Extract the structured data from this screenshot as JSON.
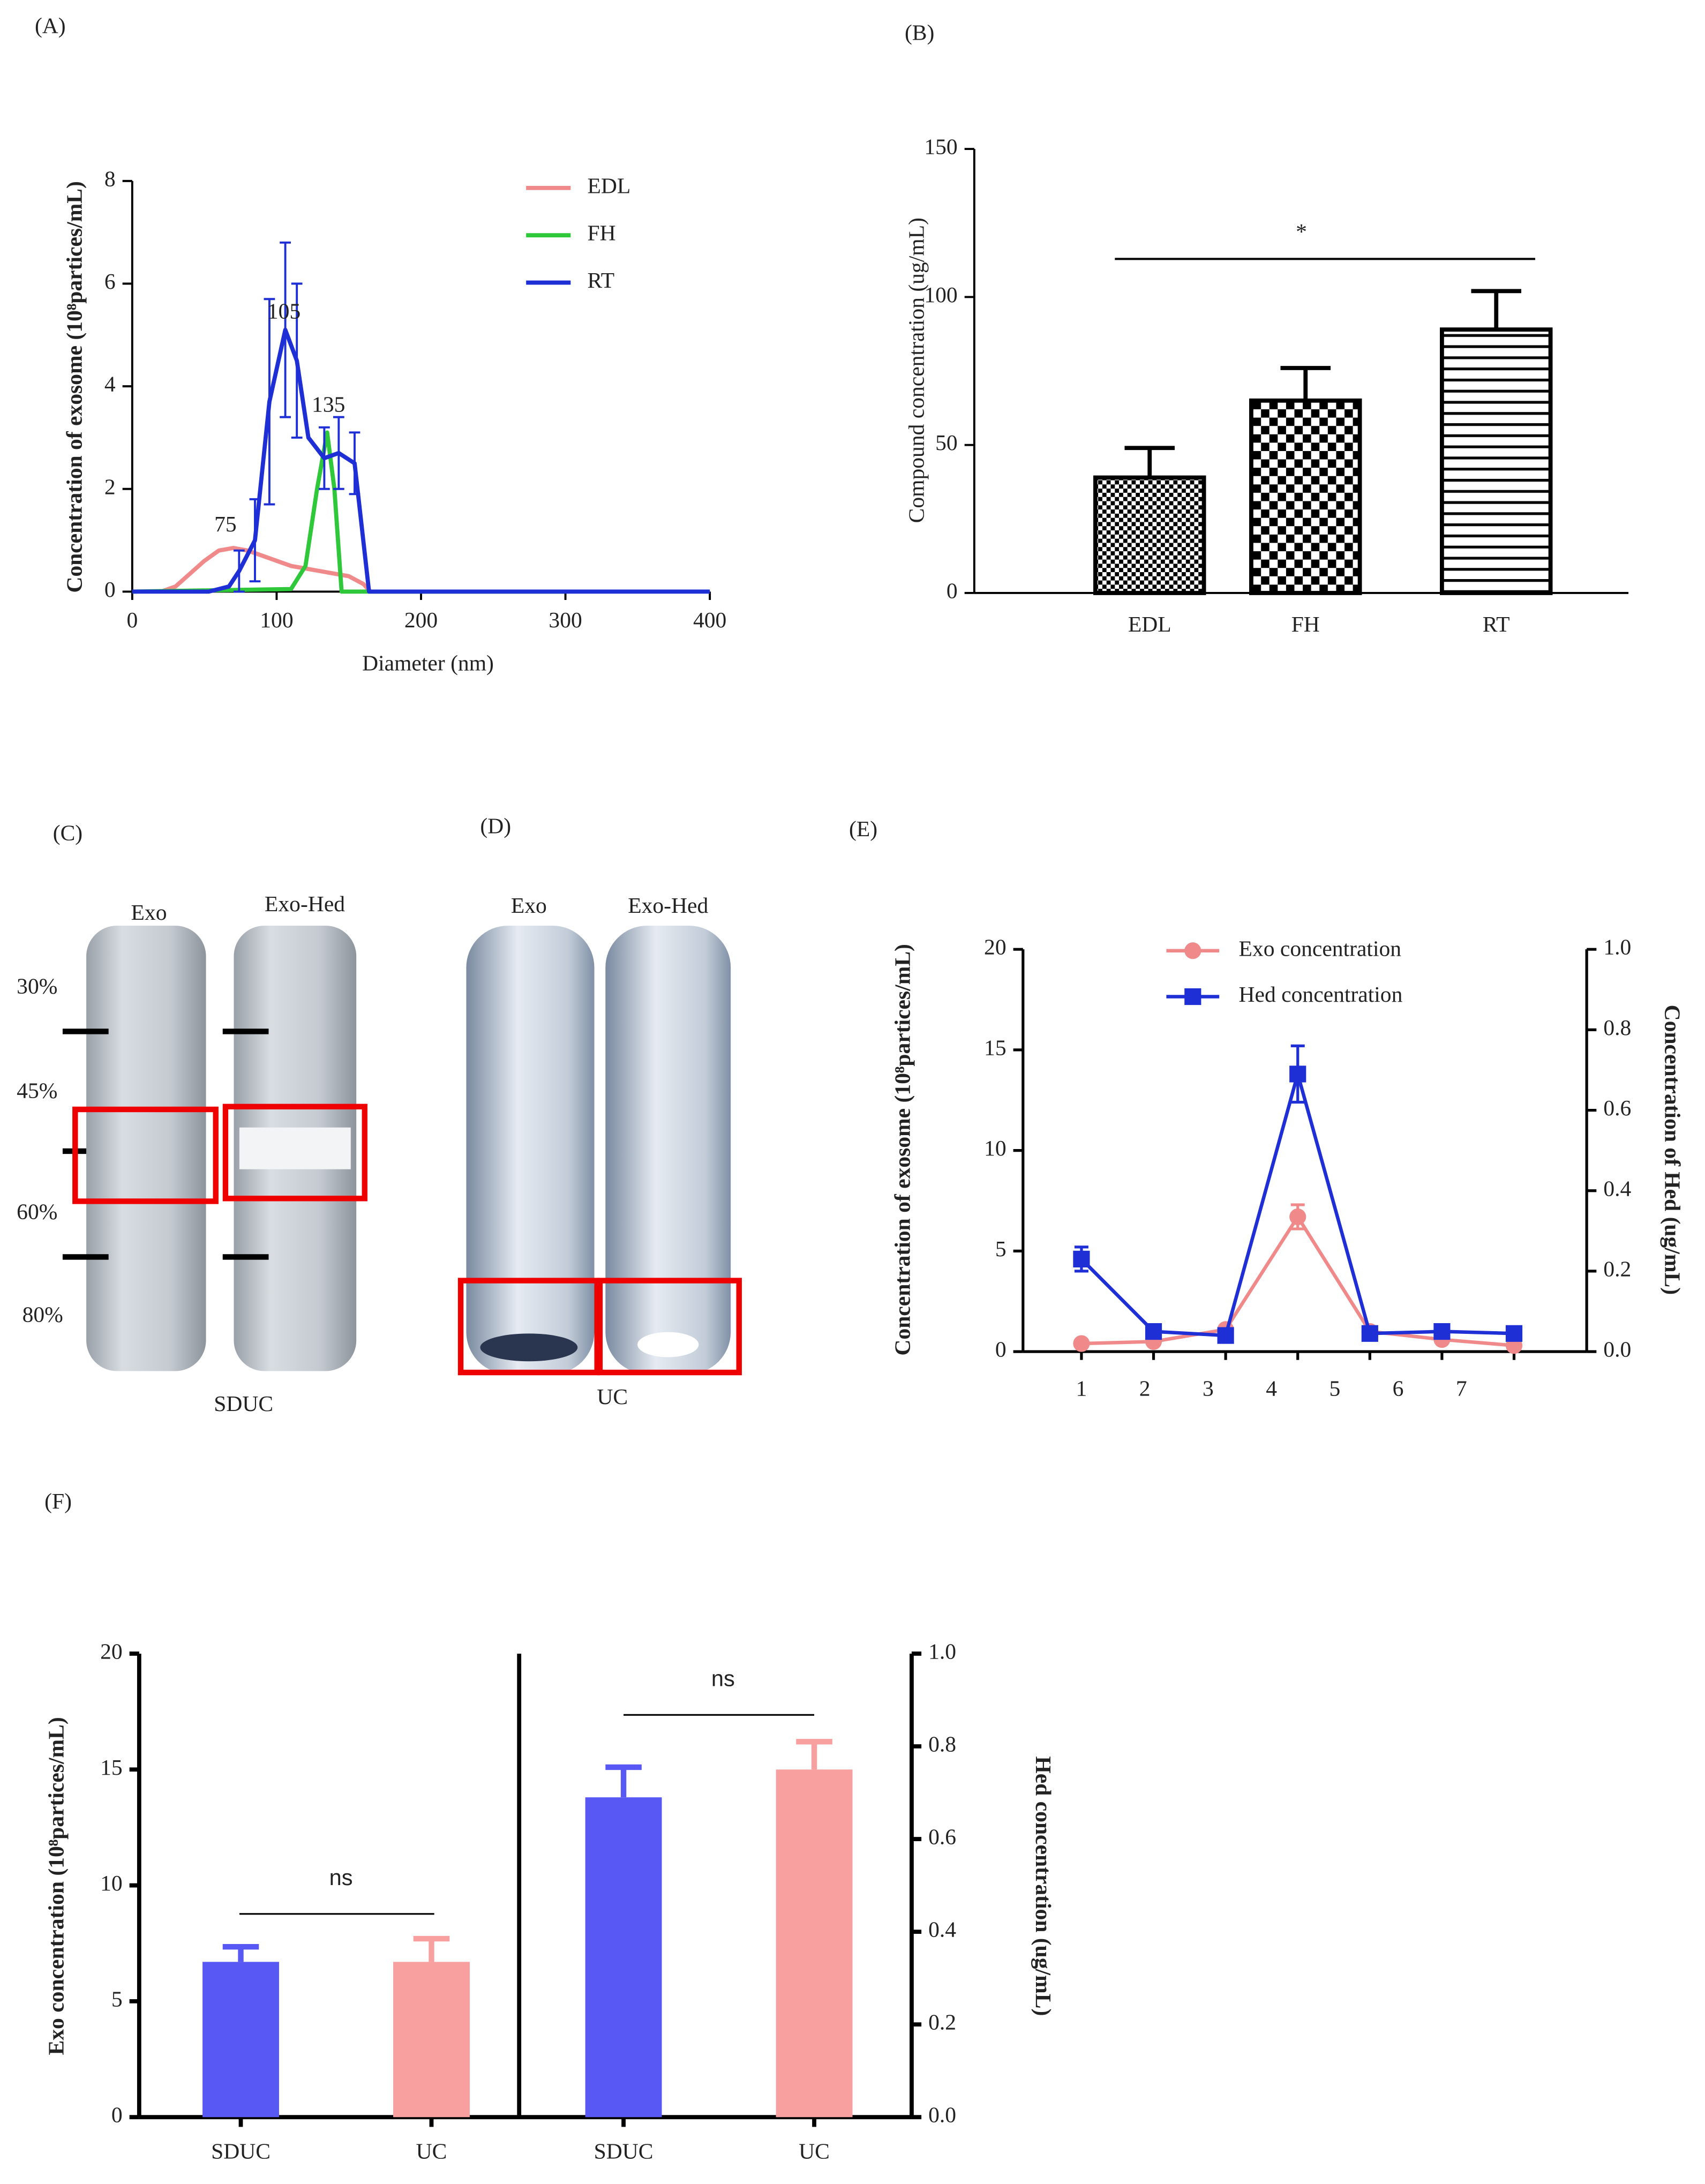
{
  "chart_data": [
    {
      "panel": "(A)",
      "type": "line",
      "xlabel": "Diameter (nm)",
      "ylabel": "Concentration of exosome (10⁸partices/mL)",
      "xlim": [
        0,
        400
      ],
      "ylim": [
        0,
        8
      ],
      "xticks": [
        0,
        100,
        200,
        300,
        400
      ],
      "yticks": [
        0,
        2,
        4,
        6,
        8
      ],
      "legend": "upper right",
      "series": [
        {
          "name": "EDL",
          "color": "#f08a8a",
          "x": [
            20,
            30,
            40,
            50,
            60,
            70,
            80,
            90,
            100,
            110,
            120,
            130,
            140,
            150,
            160,
            165
          ],
          "values": [
            0,
            0.1,
            0.35,
            0.6,
            0.8,
            0.85,
            0.8,
            0.7,
            0.6,
            0.5,
            0.45,
            0.4,
            0.35,
            0.3,
            0.15,
            0
          ]
        },
        {
          "name": "FH",
          "color": "#2ec83a",
          "x": [
            0,
            110,
            120,
            128,
            135,
            140,
            145,
            300
          ],
          "values": [
            0,
            0.05,
            0.5,
            2.0,
            3.1,
            2.0,
            0,
            0
          ]
        },
        {
          "name": "RT",
          "color": "#1f2fd6",
          "x": [
            0,
            53,
            67,
            74,
            85,
            95,
            106,
            114,
            122,
            133,
            143,
            154,
            164,
            400
          ],
          "values": [
            0,
            0,
            0.1,
            0.4,
            1.0,
            3.7,
            5.1,
            4.5,
            3.0,
            2.6,
            2.7,
            2.5,
            0,
            0
          ],
          "errors": [
            null,
            null,
            null,
            0.4,
            0.8,
            2.0,
            1.7,
            1.5,
            null,
            0.6,
            0.7,
            0.6,
            null,
            null
          ]
        }
      ],
      "annotations": [
        "75",
        "105",
        "135"
      ]
    },
    {
      "panel": "(B)",
      "type": "bar",
      "ylabel": "Compound concentration (ug/mL)",
      "categories": [
        "EDL",
        "FH",
        "RT"
      ],
      "values": [
        39,
        65,
        89
      ],
      "errors": [
        10,
        11,
        13
      ],
      "hatch": [
        "checker-small",
        "checker-large",
        "horizontal-stripes"
      ],
      "ylim": [
        0,
        150
      ],
      "yticks": [
        0,
        50,
        100,
        150
      ],
      "annotations": [
        "*"
      ]
    },
    {
      "panel": "(E)",
      "type": "line",
      "ylabel": "Concentration of exosome  (10⁸partices/mL)",
      "y2label": "Concentration of Hed (ug/mL)",
      "categories": [
        "1",
        "2",
        "3",
        "4",
        "5",
        "6",
        "7"
      ],
      "ylim": [
        0,
        20
      ],
      "yticks": [
        0,
        5,
        10,
        15,
        20
      ],
      "y2lim": [
        0,
        1
      ],
      "y2ticks": [
        {
          "value": 0,
          "label": "0.0"
        },
        0.2,
        0.4,
        0.6,
        0.8,
        {
          "value": 1,
          "label": "1.0"
        }
      ],
      "legend": "upper center",
      "series": [
        {
          "name": "Exo concentration",
          "color": "#f08a8a",
          "marker": "circle",
          "values": [
            0.4,
            0.5,
            1.1,
            6.7,
            1.0,
            0.6,
            0.3
          ],
          "errors": [
            null,
            null,
            null,
            0.6,
            null,
            null,
            null
          ]
        },
        {
          "name": "Hed concentration",
          "color": "#1f2fd6",
          "marker": "square",
          "axis": "y2",
          "values": [
            0.23,
            0.05,
            0.04,
            0.69,
            0.045,
            0.05,
            0.045
          ],
          "errors": [
            0.03,
            null,
            null,
            0.07,
            null,
            null,
            null
          ]
        }
      ]
    },
    {
      "panel": "(F)",
      "type": "bar",
      "ylabel": "Exo concentration (10⁸partices/mL)",
      "y2label": "Hed concentration (ug/mL)",
      "categories": [
        "SDUC",
        "UC",
        "SDUC",
        "UC"
      ],
      "ylim": [
        0,
        20
      ],
      "yticks": [
        0,
        5,
        10,
        15,
        20
      ],
      "y2lim": [
        0,
        1
      ],
      "y2ticks": [
        {
          "value": 0,
          "label": "0.0"
        },
        0.2,
        0.4,
        0.6,
        0.8,
        {
          "value": 1,
          "label": "1.0"
        }
      ],
      "series": [
        {
          "colors": [
            "#5858f5",
            "#f8a0a0",
            "#5858f5",
            "#f8a0a0"
          ],
          "values": [
            6.7,
            6.7,
            null,
            null
          ],
          "errors": [
            0.65,
            1.0,
            null,
            null
          ]
        },
        {
          "colors": [
            "#5858f5",
            "#f8a0a0",
            "#5858f5",
            "#f8a0a0"
          ],
          "axis": "y2",
          "values": [
            null,
            null,
            0.69,
            0.75
          ],
          "errors": [
            null,
            null,
            0.065,
            0.06
          ]
        }
      ],
      "annotations": [
        "ns",
        "ns"
      ]
    }
  ],
  "photos": [
    {
      "panel": "(C)",
      "labels": [
        "Exo",
        "Exo-Hed"
      ],
      "gradient": [
        "30%",
        "45%",
        "60%",
        "80%"
      ],
      "caption": "SDUC"
    },
    {
      "panel": "(D)",
      "labels": [
        "Exo",
        "Exo-Hed"
      ],
      "caption": "UC"
    }
  ]
}
